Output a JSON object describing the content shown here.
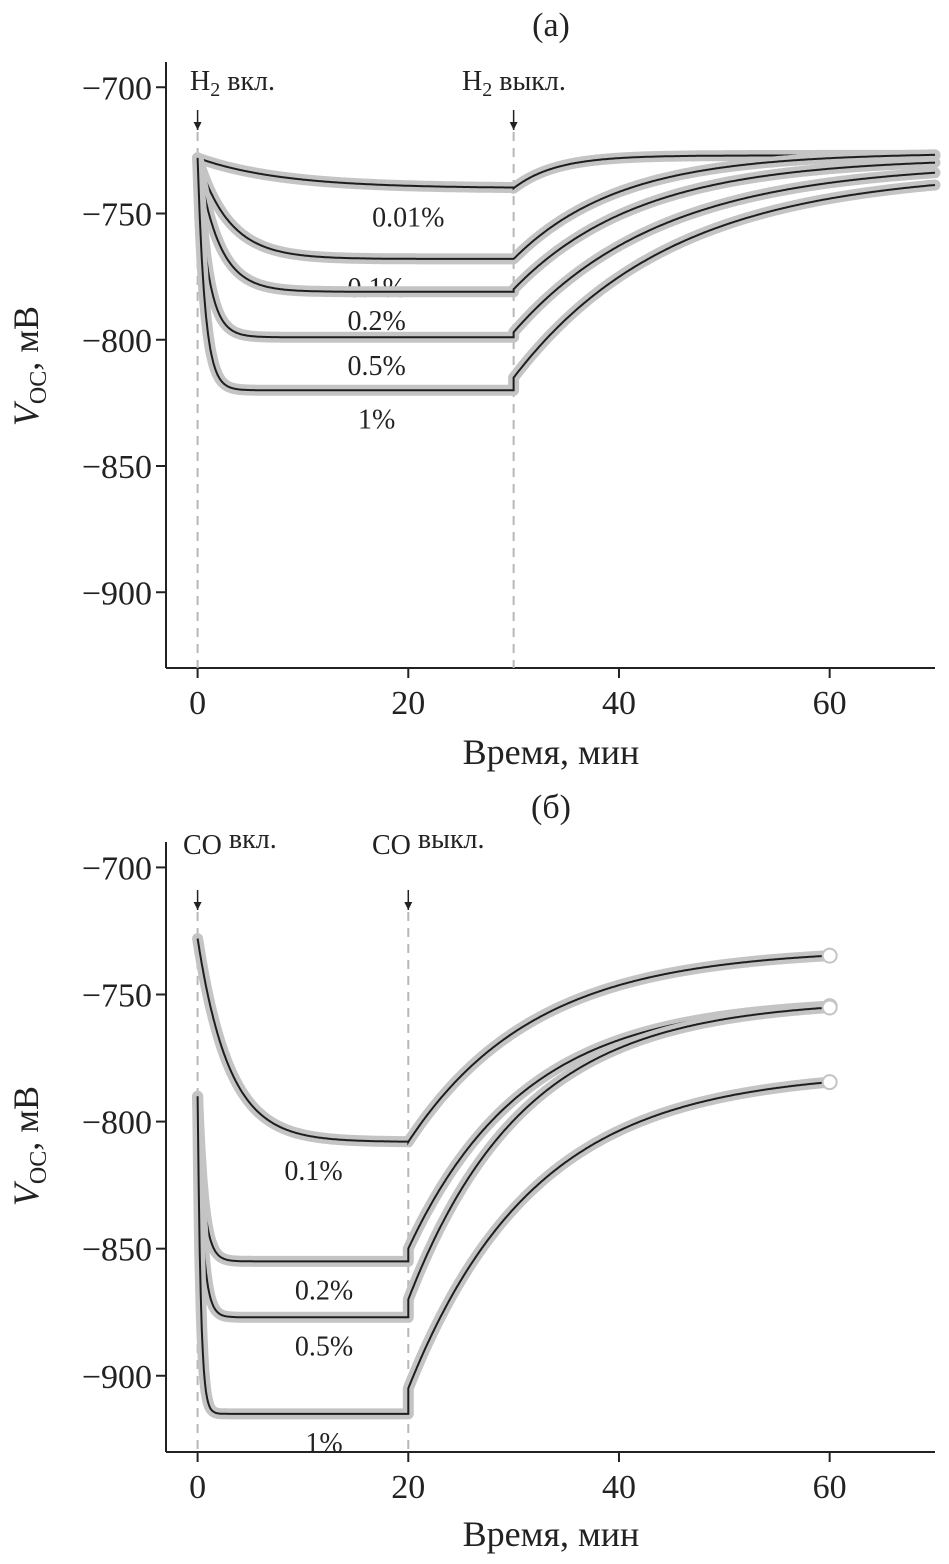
{
  "chart_data": [
    {
      "panel_label": "(а)",
      "type": "line",
      "xlabel": "Время, мин",
      "ylabel_main": "V",
      "ylabel_sub": "OC",
      "ylabel_rest": ", мВ",
      "xlim": [
        -3,
        70
      ],
      "ylim": [
        -930,
        -690
      ],
      "xticks": [
        0,
        20,
        40,
        60
      ],
      "yticks": [
        -700,
        -750,
        -800,
        -850,
        -900
      ],
      "gas_on_x": 0,
      "gas_off_x": 30,
      "gas_on_label": {
        "main": "H",
        "sub": "2",
        "rest": " вкл."
      },
      "gas_off_label": {
        "main": "H",
        "sub": "2",
        "rest": " выкл."
      },
      "series": [
        {
          "name": "0.01%",
          "start": -728,
          "plateau": -740,
          "tau_on": 8,
          "off_start": -740,
          "final": -727,
          "tau_off": 4,
          "label_pos": [
            20,
            -740
          ]
        },
        {
          "name": "0.1%",
          "start": -728,
          "plateau": -768,
          "tau_on": 3,
          "off_start": -768,
          "final": -726,
          "tau_off": 10,
          "label_pos": [
            17,
            -768
          ]
        },
        {
          "name": "0.2%",
          "start": -728,
          "plateau": -781,
          "tau_on": 2,
          "off_start": -780,
          "final": -728,
          "tau_off": 12,
          "label_pos": [
            17,
            -781
          ]
        },
        {
          "name": "0.5%",
          "start": -728,
          "plateau": -799,
          "tau_on": 1,
          "off_start": -797,
          "final": -730,
          "tau_off": 14,
          "label_pos": [
            17,
            -799
          ]
        },
        {
          "name": "1%",
          "start": -728,
          "plateau": -820,
          "tau_on": 0.7,
          "off_start": -815,
          "final": -733,
          "tau_off": 15,
          "label_pos": [
            17,
            -820
          ]
        }
      ]
    },
    {
      "panel_label": "(б)",
      "type": "line",
      "xlabel": "Время, мин",
      "ylabel_main": "V",
      "ylabel_sub": "OC",
      "ylabel_rest": ", мВ",
      "xlim": [
        -3,
        70
      ],
      "ylim": [
        -930,
        -690
      ],
      "xticks": [
        0,
        20,
        40,
        60
      ],
      "yticks": [
        -700,
        -750,
        -800,
        -850,
        -900
      ],
      "gas_on_x": 0,
      "gas_off_x": 20,
      "gas_on_label": {
        "main": "CO",
        "sub": "",
        "rest": " вкл."
      },
      "gas_off_label": {
        "main": "CO",
        "sub": "",
        "rest": " выкл."
      },
      "series": [
        {
          "name": "0.1%",
          "start": -728,
          "plateau": -808,
          "tau_on": 3,
          "off_start": -808,
          "final": -732,
          "tau_off": 12,
          "end_x": 60,
          "label_pos": [
            11,
            -808
          ]
        },
        {
          "name": "0.2%",
          "start": -790,
          "plateau": -855,
          "tau_on": 0.6,
          "off_start": -850,
          "final": -752,
          "tau_off": 11,
          "end_x": 60,
          "label_pos": [
            12,
            -855
          ]
        },
        {
          "name": "0.5%",
          "start": -790,
          "plateau": -877,
          "tau_on": 0.5,
          "off_start": -870,
          "final": -752,
          "tau_off": 11,
          "end_x": 60,
          "label_pos": [
            12,
            -877
          ]
        },
        {
          "name": "1%",
          "start": -790,
          "plateau": -915,
          "tau_on": 0.3,
          "off_start": -905,
          "final": -780,
          "tau_off": 12,
          "end_x": 60,
          "label_pos": [
            12,
            -915
          ]
        }
      ]
    }
  ]
}
